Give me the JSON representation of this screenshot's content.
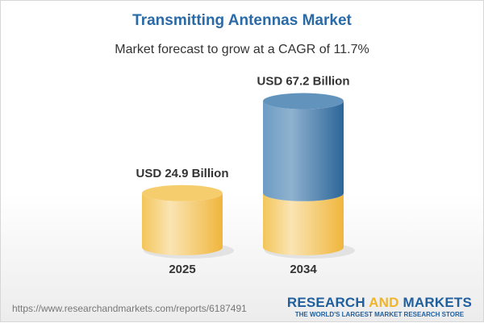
{
  "title": "Transmitting Antennas Market",
  "subtitle": "Market forecast to grow at a CAGR of 11.7%",
  "chart_data": {
    "type": "bar",
    "style": "3d-cylinder",
    "categories": [
      "2025",
      "2034"
    ],
    "values": [
      24.9,
      67.2
    ],
    "data_labels": [
      "USD 24.9 Billion",
      "USD 67.2 Billion"
    ],
    "unit": "USD Billion",
    "colors": {
      "base": "#f2c04a",
      "growth": "#3a77ab"
    }
  },
  "footer": {
    "url": "https://www.researchandmarkets.com/reports/6187491",
    "logo_part1": "RESEARCH ",
    "logo_part2": "AND",
    "logo_part3": " MARKETS",
    "tagline": "THE WORLD'S LARGEST MARKET RESEARCH STORE"
  }
}
